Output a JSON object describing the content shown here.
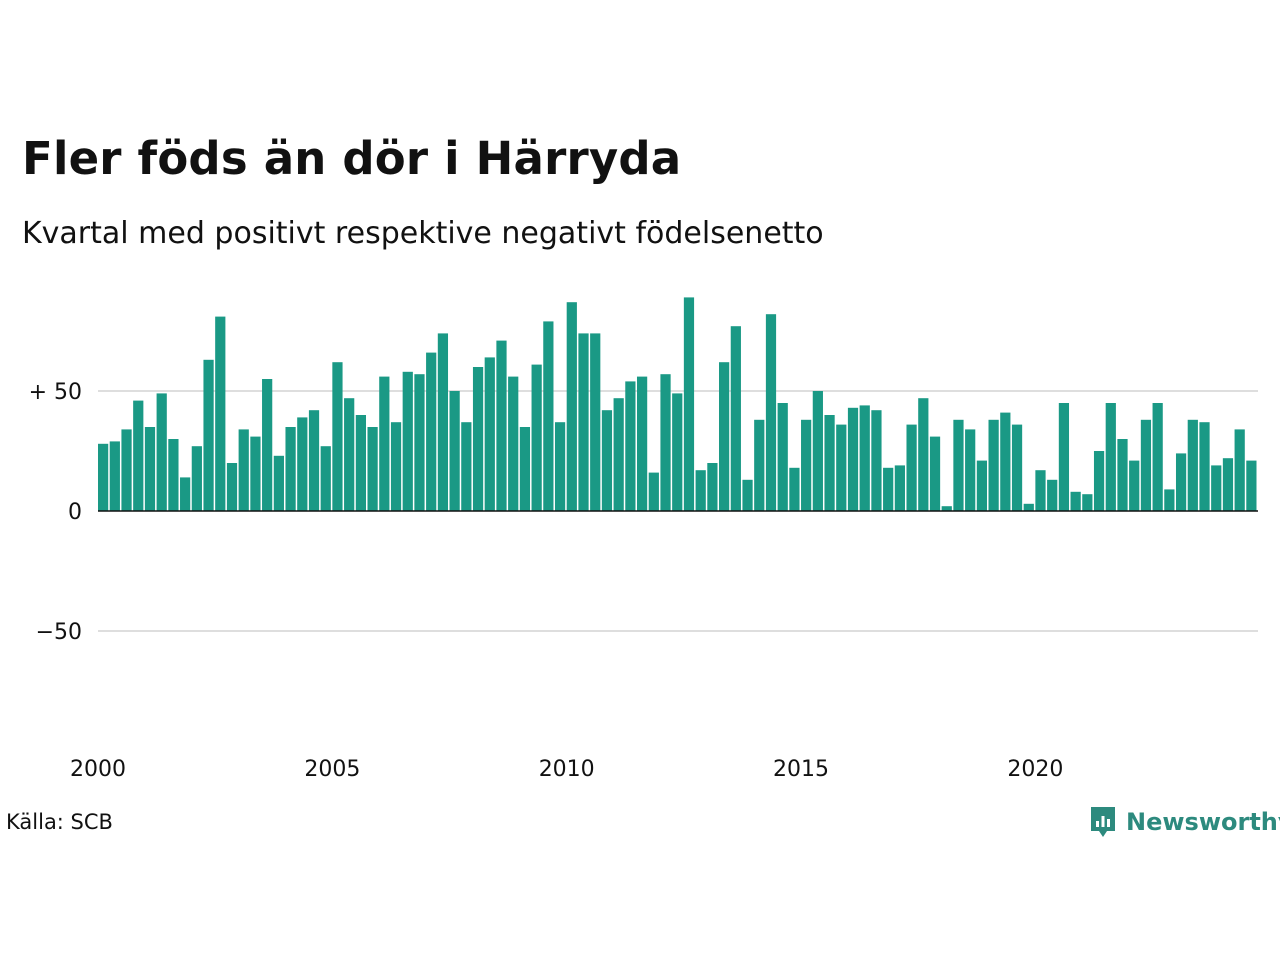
{
  "title": "Fler föds än dör i Härryda",
  "subtitle": "Kvartal med positivt respektive negativt födelsenetto",
  "source": "Källa: SCB",
  "logo": {
    "text": "Newsworthy",
    "icon": "newsworthy-logo-icon",
    "color": "#2d8a7e"
  },
  "chart_data": {
    "type": "bar",
    "ylim": [
      -100,
      100
    ],
    "yticks": [
      {
        "value": 50,
        "label": "+ 50"
      },
      {
        "value": 0,
        "label": "0"
      },
      {
        "value": -50,
        "label": "−50"
      }
    ],
    "xticks": [
      "2000",
      "2005",
      "2010",
      "2015",
      "2020"
    ],
    "grid": true,
    "bar_color": "#1a9985",
    "start_year": 2000,
    "values": [
      28,
      29,
      34,
      46,
      35,
      49,
      30,
      14,
      27,
      63,
      81,
      20,
      34,
      31,
      55,
      23,
      35,
      39,
      42,
      27,
      62,
      47,
      40,
      35,
      56,
      37,
      58,
      57,
      66,
      74,
      50,
      37,
      60,
      64,
      71,
      56,
      35,
      61,
      79,
      37,
      87,
      74,
      74,
      42,
      47,
      54,
      56,
      16,
      57,
      49,
      89,
      17,
      20,
      62,
      77,
      13,
      38,
      82,
      45,
      18,
      38,
      50,
      40,
      36,
      43,
      44,
      42,
      18,
      19,
      36,
      47,
      31,
      2,
      38,
      34,
      21,
      38,
      41,
      36,
      3,
      17,
      13,
      45,
      8,
      7,
      25,
      45,
      30,
      21,
      38,
      45,
      9,
      24,
      38,
      37,
      19,
      22,
      34,
      21
    ]
  }
}
